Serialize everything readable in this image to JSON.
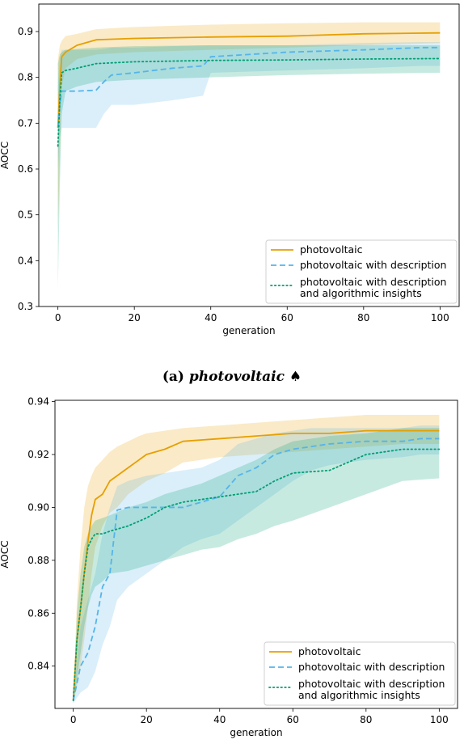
{
  "caption": {
    "label": "(a)",
    "name": "photovoltaic",
    "symbol": "♠"
  },
  "colors": {
    "photovoltaic": "#E69F00",
    "photovoltaic_desc": "#56B4E9",
    "photovoltaic_desc_insights": "#009E73"
  },
  "chart_data": [
    {
      "type": "line",
      "xlabel": "generation",
      "ylabel": "AOCC",
      "xlim": [
        -5,
        105
      ],
      "ylim": [
        0.3,
        0.96
      ],
      "xticks": [
        0,
        20,
        40,
        60,
        80,
        100
      ],
      "yticks": [
        0.3,
        0.4,
        0.5,
        0.6,
        0.7,
        0.8,
        0.9
      ],
      "ytick_labels": [
        "0.3",
        "0.4",
        "0.5",
        "0.6",
        "0.7",
        "0.8",
        "0.9"
      ],
      "legend_position": "lower-right",
      "series": [
        {
          "name": "photovoltaic",
          "style": "solid",
          "color": "#E69F00",
          "x": [
            0,
            0.5,
            1,
            2,
            5,
            10,
            20,
            40,
            60,
            80,
            100
          ],
          "y": [
            0.69,
            0.78,
            0.845,
            0.855,
            0.87,
            0.882,
            0.885,
            0.888,
            0.89,
            0.895,
            0.897
          ],
          "low": [
            0.47,
            0.62,
            0.78,
            0.82,
            0.84,
            0.85,
            0.855,
            0.86,
            0.865,
            0.87,
            0.875
          ],
          "high": [
            0.84,
            0.87,
            0.88,
            0.89,
            0.895,
            0.905,
            0.91,
            0.915,
            0.918,
            0.92,
            0.92
          ]
        },
        {
          "name": "photovoltaic with description",
          "style": "dashed",
          "color": "#56B4E9",
          "x": [
            0,
            0.5,
            1,
            5,
            10,
            12,
            14,
            20,
            30,
            38,
            40,
            60,
            80,
            95,
            100
          ],
          "y": [
            0.69,
            0.74,
            0.77,
            0.77,
            0.772,
            0.79,
            0.805,
            0.81,
            0.82,
            0.825,
            0.845,
            0.855,
            0.86,
            0.865,
            0.865
          ],
          "low": [
            0.6,
            0.67,
            0.69,
            0.69,
            0.69,
            0.72,
            0.74,
            0.74,
            0.75,
            0.76,
            0.81,
            0.815,
            0.82,
            0.825,
            0.825
          ],
          "high": [
            0.78,
            0.84,
            0.86,
            0.86,
            0.86,
            0.862,
            0.865,
            0.865,
            0.868,
            0.87,
            0.87,
            0.87,
            0.875,
            0.877,
            0.877
          ]
        },
        {
          "name": "photovoltaic with description\nand algorithmic insights",
          "style": "dotted",
          "color": "#009E73",
          "x": [
            0,
            0.5,
            1,
            2,
            5,
            10,
            20,
            40,
            60,
            80,
            100
          ],
          "y": [
            0.65,
            0.75,
            0.81,
            0.815,
            0.82,
            0.83,
            0.834,
            0.837,
            0.838,
            0.84,
            0.841
          ],
          "low": [
            0.34,
            0.56,
            0.72,
            0.77,
            0.78,
            0.79,
            0.795,
            0.8,
            0.805,
            0.808,
            0.81
          ],
          "high": [
            0.83,
            0.85,
            0.855,
            0.86,
            0.862,
            0.865,
            0.868,
            0.87,
            0.87,
            0.87,
            0.87
          ]
        }
      ]
    },
    {
      "type": "line",
      "xlabel": "generation",
      "ylabel": "AOCC",
      "xlim": [
        -5,
        105
      ],
      "ylim": [
        0.824,
        0.9405
      ],
      "xticks": [
        0,
        20,
        40,
        60,
        80,
        100
      ],
      "yticks": [
        0.84,
        0.86,
        0.88,
        0.9,
        0.92,
        0.94
      ],
      "ytick_labels": [
        "0.84",
        "0.86",
        "0.88",
        "0.90",
        "0.92",
        "0.94"
      ],
      "legend_position": "lower-right",
      "series": [
        {
          "name": "photovoltaic",
          "style": "solid",
          "color": "#E69F00",
          "x": [
            0,
            1,
            2,
            3,
            4,
            5,
            6,
            8,
            10,
            12,
            15,
            18,
            20,
            25,
            30,
            40,
            50,
            60,
            70,
            80,
            90,
            100
          ],
          "y": [
            0.827,
            0.85,
            0.862,
            0.875,
            0.887,
            0.897,
            0.903,
            0.905,
            0.91,
            0.912,
            0.915,
            0.918,
            0.92,
            0.922,
            0.925,
            0.926,
            0.927,
            0.928,
            0.928,
            0.929,
            0.929,
            0.929
          ],
          "low": [
            0.826,
            0.832,
            0.84,
            0.85,
            0.862,
            0.875,
            0.885,
            0.893,
            0.898,
            0.9,
            0.905,
            0.908,
            0.91,
            0.913,
            0.917,
            0.919,
            0.92,
            0.921,
            0.922,
            0.923,
            0.924,
            0.924
          ],
          "high": [
            0.828,
            0.865,
            0.885,
            0.9,
            0.908,
            0.912,
            0.915,
            0.918,
            0.921,
            0.923,
            0.925,
            0.927,
            0.928,
            0.929,
            0.93,
            0.931,
            0.932,
            0.933,
            0.934,
            0.935,
            0.935,
            0.935
          ]
        },
        {
          "name": "photovoltaic with description",
          "style": "dashed",
          "color": "#56B4E9",
          "x": [
            0,
            2,
            4,
            6,
            8,
            10,
            12,
            15,
            20,
            25,
            30,
            35,
            40,
            45,
            50,
            55,
            60,
            65,
            70,
            80,
            90,
            95,
            100
          ],
          "y": [
            0.827,
            0.84,
            0.845,
            0.855,
            0.87,
            0.875,
            0.899,
            0.9,
            0.9,
            0.9,
            0.9,
            0.902,
            0.904,
            0.912,
            0.915,
            0.92,
            0.922,
            0.923,
            0.924,
            0.925,
            0.925,
            0.926,
            0.926
          ],
          "low": [
            0.826,
            0.83,
            0.832,
            0.838,
            0.848,
            0.855,
            0.865,
            0.87,
            0.875,
            0.88,
            0.885,
            0.888,
            0.89,
            0.895,
            0.9,
            0.905,
            0.91,
            0.914,
            0.916,
            0.918,
            0.919,
            0.92,
            0.92
          ],
          "high": [
            0.828,
            0.855,
            0.865,
            0.875,
            0.89,
            0.9,
            0.908,
            0.91,
            0.912,
            0.913,
            0.914,
            0.915,
            0.918,
            0.924,
            0.926,
            0.928,
            0.929,
            0.93,
            0.93,
            0.93,
            0.93,
            0.931,
            0.931
          ]
        },
        {
          "name": "photovoltaic with description\nand algorithmic insights",
          "style": "dotted",
          "color": "#009E73",
          "x": [
            0,
            1,
            2,
            3,
            4,
            5,
            6,
            8,
            10,
            15,
            20,
            25,
            30,
            35,
            40,
            45,
            50,
            55,
            60,
            70,
            80,
            90,
            100
          ],
          "y": [
            0.827,
            0.85,
            0.862,
            0.875,
            0.885,
            0.888,
            0.89,
            0.89,
            0.891,
            0.893,
            0.896,
            0.9,
            0.902,
            0.903,
            0.904,
            0.905,
            0.906,
            0.91,
            0.913,
            0.914,
            0.92,
            0.922,
            0.922
          ],
          "low": [
            0.826,
            0.835,
            0.845,
            0.855,
            0.862,
            0.867,
            0.87,
            0.872,
            0.875,
            0.876,
            0.878,
            0.88,
            0.882,
            0.884,
            0.885,
            0.888,
            0.89,
            0.893,
            0.895,
            0.9,
            0.905,
            0.91,
            0.911
          ],
          "high": [
            0.828,
            0.86,
            0.875,
            0.885,
            0.89,
            0.893,
            0.895,
            0.896,
            0.897,
            0.9,
            0.902,
            0.905,
            0.907,
            0.909,
            0.912,
            0.915,
            0.918,
            0.922,
            0.925,
            0.927,
            0.928,
            0.93,
            0.93
          ]
        }
      ]
    }
  ]
}
